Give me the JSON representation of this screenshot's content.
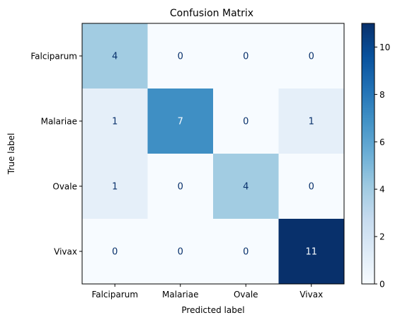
{
  "chart_data": {
    "type": "heatmap",
    "title": "Confusion Matrix",
    "xlabel": "Predicted label",
    "ylabel": "True label",
    "x_categories": [
      "Falciparum",
      "Malariae",
      "Ovale",
      "Vivax"
    ],
    "y_categories": [
      "Falciparum",
      "Malariae",
      "Ovale",
      "Vivax"
    ],
    "values": [
      [
        4,
        0,
        0,
        0
      ],
      [
        1,
        7,
        0,
        1
      ],
      [
        1,
        0,
        4,
        0
      ],
      [
        0,
        0,
        0,
        11
      ]
    ],
    "colormap": "Blues",
    "colorbar": {
      "min": 0,
      "max": 11,
      "ticks": [
        0,
        2,
        4,
        6,
        8,
        10
      ],
      "tick_labels": [
        "0",
        "2",
        "4",
        "6",
        "8",
        "10"
      ]
    },
    "grid": false
  }
}
